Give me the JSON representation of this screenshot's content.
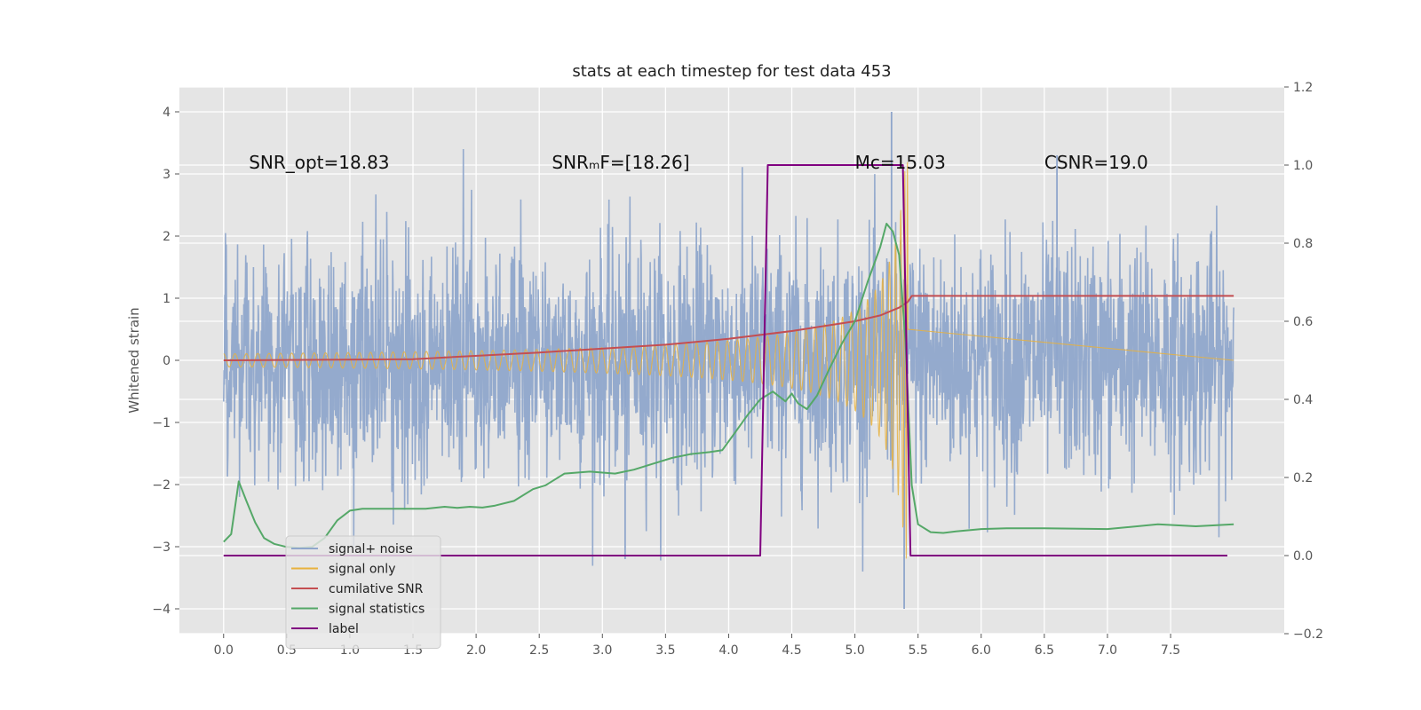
{
  "chart_data": {
    "type": "line",
    "title": "stats at each timestep for test data 453",
    "ylabel": "Whitened strain",
    "y2label": "",
    "xlim": [
      -0.35,
      8.4
    ],
    "ylim": [
      -4.4,
      4.4
    ],
    "y2lim": [
      -0.2,
      1.2
    ],
    "x_ticks": [
      0.0,
      0.5,
      1.0,
      1.5,
      2.0,
      2.5,
      3.0,
      3.5,
      4.0,
      4.5,
      5.0,
      5.5,
      6.0,
      6.5,
      7.0,
      7.5
    ],
    "x_tick_labels": [
      "0.0",
      "0.5",
      "1.0",
      "1.5",
      "2.0",
      "2.5",
      "3.0",
      "3.5",
      "4.0",
      "4.5",
      "5.0",
      "5.5",
      "6.0",
      "6.5",
      "7.0",
      "7.5"
    ],
    "y_ticks": [
      -4,
      -3,
      -2,
      -1,
      0,
      1,
      2,
      3,
      4
    ],
    "y_tick_labels": [
      "−4",
      "−3",
      "−2",
      "−1",
      "0",
      "1",
      "2",
      "3",
      "4"
    ],
    "y2_ticks": [
      -0.2,
      0.0,
      0.2,
      0.4,
      0.6,
      0.8,
      1.0,
      1.2
    ],
    "y2_tick_labels": [
      "−0.2",
      "0.0",
      "0.2",
      "0.4",
      "0.6",
      "0.8",
      "1.0",
      "1.2"
    ],
    "grid": true,
    "legend_placement": "lower-left",
    "annotations": [
      {
        "text": "SNR_opt=18.83",
        "x": 0.2,
        "y": 3.2
      },
      {
        "text": "SNRₘF=[18.26]",
        "x": 2.6,
        "y": 3.2
      },
      {
        "text": "Mᴄ=15.03",
        "x": 5.0,
        "y": 3.2
      },
      {
        "text": "CSNR=19.0",
        "x": 6.5,
        "y": 3.2
      }
    ],
    "series": [
      {
        "name": "signal+ noise",
        "color": "#8fa6cb",
        "axis": "left",
        "kind": "noise",
        "x_range": [
          0.0,
          8.0
        ],
        "base_amplitude": 1.0,
        "notable_peaks": [
          {
            "x": 5.29,
            "y": 4.0
          },
          {
            "x": 5.39,
            "y": -4.0
          },
          {
            "x": 3.18,
            "y": -3.2
          },
          {
            "x": 6.6,
            "y": 3.3
          }
        ]
      },
      {
        "name": "signal only",
        "color": "#e8b23e",
        "axis": "left",
        "kind": "chirp",
        "x_range": [
          0.0,
          5.42
        ],
        "peak_x": 5.42,
        "peak_amplitude": 3.2
      },
      {
        "name": "cumilative SNR",
        "color": "#c44e52",
        "axis": "right",
        "x": [
          0.0,
          1.5,
          2.5,
          3.5,
          4.0,
          4.5,
          5.0,
          5.2,
          5.35,
          5.42,
          5.45,
          8.0
        ],
        "values": [
          0.5,
          0.503,
          0.52,
          0.54,
          0.555,
          0.575,
          0.6,
          0.615,
          0.635,
          0.65,
          0.665,
          0.665
        ]
      },
      {
        "name": "signal statistics",
        "color": "#55a868",
        "axis": "right",
        "x": [
          0.0,
          0.06,
          0.12,
          0.18,
          0.25,
          0.32,
          0.4,
          0.5,
          0.6,
          0.7,
          0.8,
          0.9,
          1.0,
          1.1,
          1.2,
          1.4,
          1.6,
          1.75,
          1.85,
          1.95,
          2.05,
          2.15,
          2.3,
          2.45,
          2.55,
          2.7,
          2.9,
          3.1,
          3.25,
          3.4,
          3.55,
          3.7,
          3.85,
          3.95,
          4.05,
          4.15,
          4.25,
          4.35,
          4.45,
          4.5,
          4.55,
          4.62,
          4.7,
          4.8,
          4.9,
          5.0,
          5.1,
          5.2,
          5.25,
          5.3,
          5.35,
          5.4,
          5.45,
          5.5,
          5.6,
          5.7,
          5.8,
          6.0,
          6.2,
          6.5,
          7.0,
          7.4,
          7.7,
          8.0
        ],
        "values": [
          0.035,
          0.055,
          0.19,
          0.14,
          0.085,
          0.045,
          0.03,
          0.022,
          0.02,
          0.022,
          0.045,
          0.09,
          0.115,
          0.12,
          0.12,
          0.12,
          0.12,
          0.125,
          0.122,
          0.125,
          0.123,
          0.128,
          0.14,
          0.17,
          0.18,
          0.21,
          0.215,
          0.21,
          0.22,
          0.235,
          0.25,
          0.26,
          0.265,
          0.27,
          0.315,
          0.36,
          0.4,
          0.42,
          0.395,
          0.415,
          0.39,
          0.375,
          0.41,
          0.48,
          0.545,
          0.6,
          0.7,
          0.79,
          0.85,
          0.83,
          0.77,
          0.55,
          0.18,
          0.08,
          0.06,
          0.058,
          0.062,
          0.068,
          0.07,
          0.07,
          0.068,
          0.08,
          0.075,
          0.08
        ]
      },
      {
        "name": "label",
        "color": "#800080",
        "axis": "right",
        "x": [
          0.0,
          4.25,
          4.31,
          5.38,
          5.44,
          7.95
        ],
        "values": [
          0.0,
          0.0,
          1.0,
          1.0,
          0.0,
          0.0
        ]
      }
    ]
  }
}
